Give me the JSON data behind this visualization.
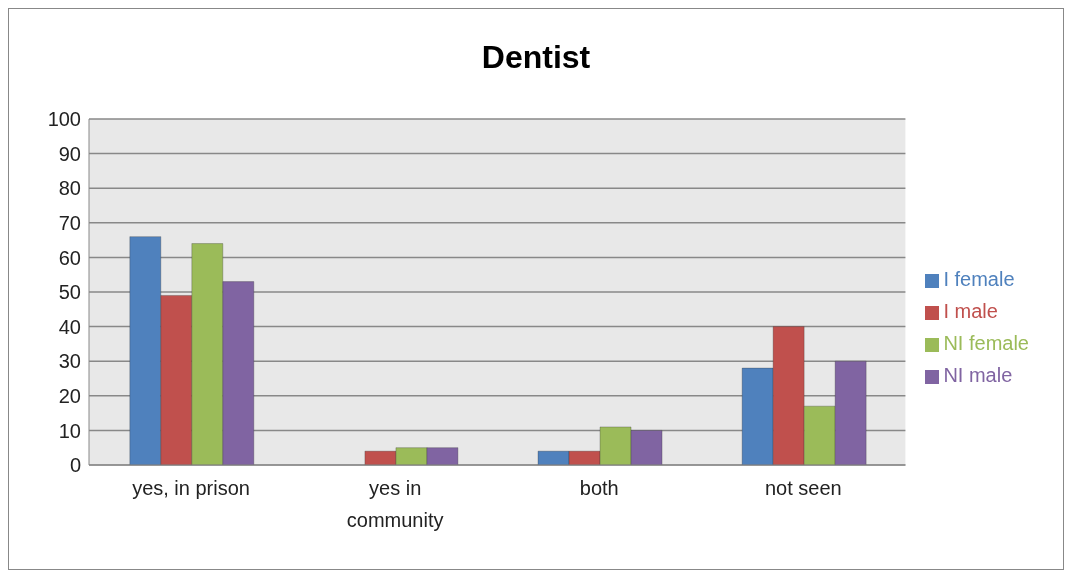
{
  "chart_data": {
    "type": "bar",
    "title": "Dentist",
    "categories": [
      "yes, in prison",
      "yes in community",
      "both",
      "not seen"
    ],
    "series": [
      {
        "name": "I female",
        "color": "#4f81bd",
        "values": [
          66,
          0,
          4,
          28
        ]
      },
      {
        "name": "I male",
        "color": "#c0504d",
        "values": [
          49,
          4,
          4,
          40
        ]
      },
      {
        "name": "NI female",
        "color": "#9bbb59",
        "values": [
          64,
          5,
          11,
          17
        ]
      },
      {
        "name": "NI male",
        "color": "#8064a2",
        "values": [
          53,
          5,
          10,
          30
        ]
      }
    ],
    "ylim": [
      0,
      100
    ],
    "yticks": [
      0,
      10,
      20,
      30,
      40,
      50,
      60,
      70,
      80,
      90,
      100
    ],
    "grid": "y",
    "legend": "right"
  }
}
